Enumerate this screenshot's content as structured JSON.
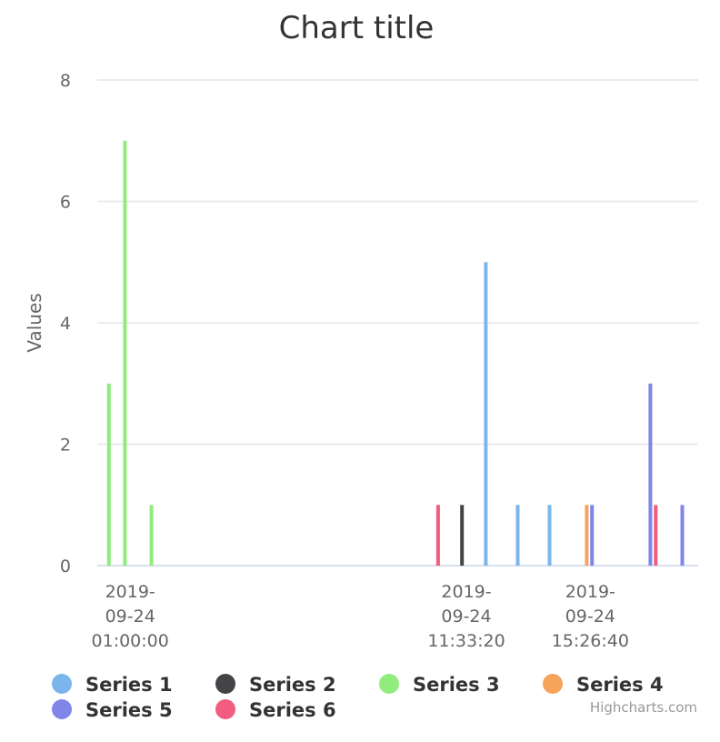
{
  "chart_data": {
    "type": "bar",
    "title": "Chart title",
    "ylabel": "Values",
    "xlabel": "",
    "ylim": [
      0,
      8
    ],
    "yticks": [
      0,
      2,
      4,
      6,
      8
    ],
    "grid": true,
    "legend_position": "bottom",
    "x_axis_labels": [
      {
        "at": "2019-09-24 01:00:00",
        "lines": [
          "2019-",
          "09-24",
          "01:00:00"
        ]
      },
      {
        "at": "2019-09-24 11:33:20",
        "lines": [
          "2019-",
          "09-24",
          "11:33:20"
        ]
      },
      {
        "at": "2019-09-24 15:26:40",
        "lines": [
          "2019-",
          "09-24",
          "15:26:40"
        ]
      }
    ],
    "series": [
      {
        "name": "Series 1",
        "color": "#7cb5ec",
        "points": [
          {
            "x": "2019-09-24 12:10:00",
            "y": 5
          },
          {
            "x": "2019-09-24 13:10:00",
            "y": 1
          },
          {
            "x": "2019-09-24 14:10:00",
            "y": 1
          }
        ]
      },
      {
        "name": "Series 2",
        "color": "#434348",
        "points": [
          {
            "x": "2019-09-24 11:25:00",
            "y": 1
          }
        ]
      },
      {
        "name": "Series 3",
        "color": "#90ed7d",
        "points": [
          {
            "x": "2019-09-24 00:20:00",
            "y": 3
          },
          {
            "x": "2019-09-24 00:50:00",
            "y": 7
          },
          {
            "x": "2019-09-24 01:40:00",
            "y": 1
          }
        ]
      },
      {
        "name": "Series 4",
        "color": "#f7a35c",
        "points": [
          {
            "x": "2019-09-24 15:20:00",
            "y": 1
          }
        ]
      },
      {
        "name": "Series 5",
        "color": "#8085e9",
        "points": [
          {
            "x": "2019-09-24 15:30:00",
            "y": 1
          },
          {
            "x": "2019-09-24 17:20:00",
            "y": 3
          },
          {
            "x": "2019-09-24 18:20:00",
            "y": 1
          }
        ]
      },
      {
        "name": "Series 6",
        "color": "#f15c80",
        "points": [
          {
            "x": "2019-09-24 10:40:00",
            "y": 1
          },
          {
            "x": "2019-09-24 17:30:00",
            "y": 1
          }
        ]
      }
    ],
    "credits": "Highcharts.com"
  }
}
